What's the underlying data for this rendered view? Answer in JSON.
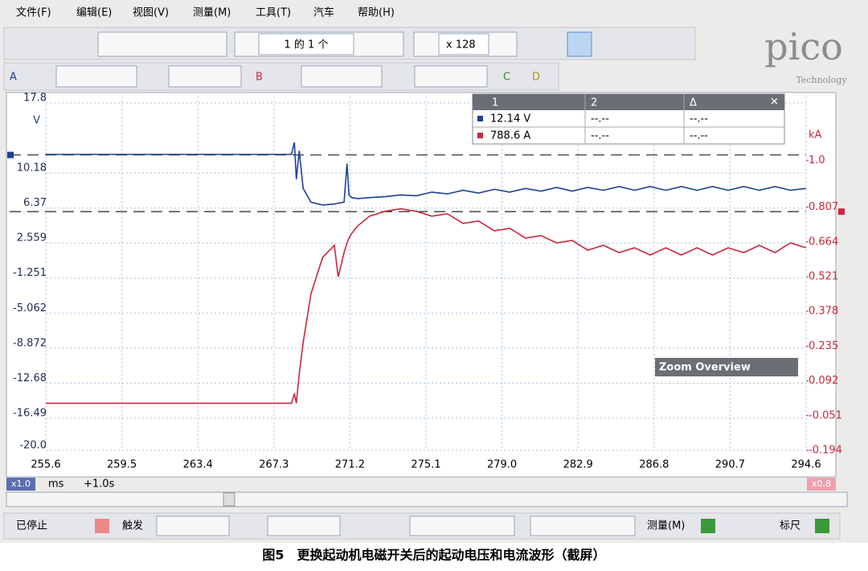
{
  "menu": [
    "文件(F)",
    "编辑(E)",
    "视图(V)",
    "测量(M)",
    "工具(T)",
    "汽车",
    "帮助(H)"
  ],
  "toolbar": {
    "page_counter": "1 的 1 个",
    "zoom": "x 128",
    "logo": "pico",
    "logo_sub": "Technology"
  },
  "channels": [
    "A",
    "B",
    "C",
    "D"
  ],
  "chart_data": {
    "type": "line",
    "y_unit": "V",
    "y2_unit": "kA",
    "x_unit": "ms",
    "x_offset": "+1.0s",
    "x_zoom": "x1.0",
    "y2_zoom": "x0.8",
    "grid": true,
    "xlim": [
      255.6,
      294.6
    ],
    "xticks": [
      255.6,
      259.5,
      263.4,
      267.3,
      271.2,
      275.1,
      {
        "value": 279,
        "label": "279.0"
      },
      282.9,
      286.8,
      290.7,
      294.6
    ],
    "ylim": [
      -20,
      17.8
    ],
    "yticks": [
      17.8,
      10.18,
      6.37,
      2.559,
      -1.251,
      -5.062,
      -8.872,
      -12.68,
      -16.49,
      {
        "value": -20,
        "label": "-20.0"
      }
    ],
    "y2lim": [
      -0.194,
      1.236
    ],
    "y2ticks": [
      {
        "value": 1,
        "label": "1.0"
      },
      0.807,
      0.664,
      0.521,
      0.378,
      0.235,
      0.092,
      -0.051,
      -0.194
    ],
    "x": [
      255.6,
      258,
      261,
      264,
      267,
      268.2,
      268.35,
      268.45,
      268.6,
      268.8,
      269.2,
      269.8,
      270.4,
      270.6,
      270.9,
      271.05,
      271.15,
      271.3,
      271.6,
      272.2,
      273,
      273.8,
      274.6,
      275.4,
      276.2,
      277,
      277.8,
      278.6,
      279.4,
      280.2,
      281,
      281.8,
      282.6,
      283.4,
      284.2,
      285,
      285.8,
      286.6,
      287.4,
      288.2,
      289,
      289.8,
      290.6,
      291.4,
      292.2,
      293,
      293.8,
      294.6
    ],
    "series": [
      {
        "name": "A",
        "color": "#1f3f99",
        "axis": "y",
        "values": [
          12.2,
          12.2,
          12.2,
          12.2,
          12.2,
          12.2,
          13.5,
          9.5,
          12.6,
          8.5,
          7.0,
          6.7,
          6.8,
          6.9,
          7.0,
          11.2,
          7.8,
          7.5,
          7.4,
          7.5,
          7.6,
          7.8,
          7.7,
          8.1,
          7.9,
          8.3,
          8.0,
          8.4,
          8.1,
          8.5,
          8.2,
          8.6,
          8.2,
          8.6,
          8.3,
          8.7,
          8.3,
          8.7,
          8.3,
          8.7,
          8.3,
          8.7,
          8.3,
          8.7,
          8.3,
          8.7,
          8.3,
          8.5
        ]
      },
      {
        "name": "B",
        "color": "#c8283c",
        "axis": "y2",
        "values": [
          0.0,
          0.0,
          0.0,
          0.0,
          0.0,
          0.0,
          0.04,
          0.0,
          0.12,
          0.25,
          0.45,
          0.6,
          0.65,
          0.52,
          0.62,
          0.66,
          0.68,
          0.7,
          0.73,
          0.77,
          0.79,
          0.8,
          0.79,
          0.77,
          0.78,
          0.74,
          0.75,
          0.71,
          0.72,
          0.68,
          0.69,
          0.66,
          0.67,
          0.63,
          0.65,
          0.62,
          0.64,
          0.61,
          0.64,
          0.61,
          0.64,
          0.61,
          0.64,
          0.62,
          0.65,
          0.62,
          0.66,
          0.64
        ]
      }
    ],
    "rulers": [
      {
        "axis": "y",
        "value": 12.14,
        "label": "12.14 V",
        "color": "#1f3f99"
      },
      {
        "axis": "y2",
        "value": 0.7886,
        "label": "788.6 A",
        "color": "#c8283c"
      }
    ]
  },
  "cursor_table": {
    "headers": [
      "1",
      "2",
      "Δ"
    ],
    "empty": "--.--"
  },
  "zoom_overview": "Zoom Overview",
  "status_bar": {
    "stopped": "已停止",
    "trigger": "触发",
    "measure": "测量(M)",
    "ruler": "标尺"
  },
  "caption": "图5　更换起动机电磁开关后的起动电压和电流波形（截屏）"
}
